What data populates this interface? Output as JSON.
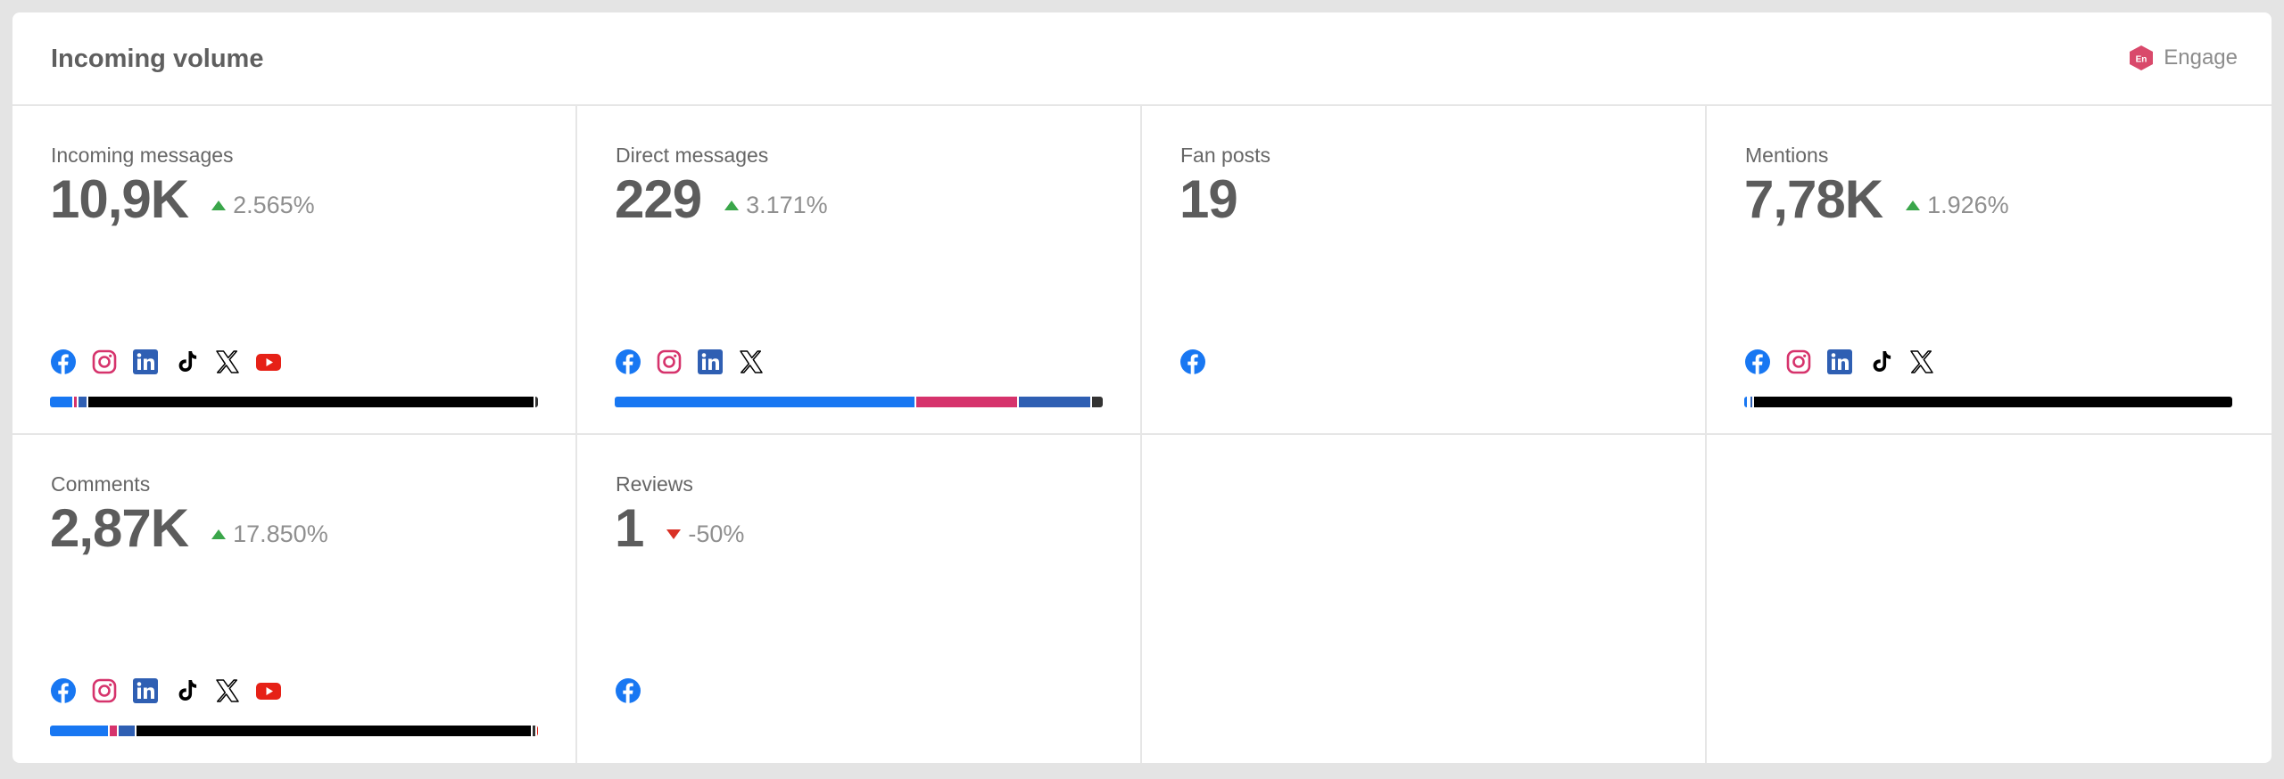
{
  "header": {
    "title": "Incoming volume",
    "engage_label": "Engage",
    "engage_logo_text": "En"
  },
  "colors": {
    "facebook": "#1877f2",
    "instagram": "#d6336c",
    "linkedin": "#2f5fb3",
    "tiktok": "#000000",
    "x": "#000000",
    "youtube": "#e62117",
    "trend_up": "#3aa64a",
    "trend_down": "#d93025"
  },
  "tiles": [
    {
      "label": "Incoming messages",
      "value": "10,9K",
      "trend": "2.565%",
      "trend_direction": "up",
      "channels": [
        "facebook",
        "instagram",
        "linkedin",
        "tiktok",
        "x",
        "youtube"
      ],
      "bar_fractions": [
        0.045,
        0.01,
        0.02,
        0.915,
        0.01
      ]
    },
    {
      "label": "Direct messages",
      "value": "229",
      "trend": "3.171%",
      "trend_direction": "up",
      "channels": [
        "facebook",
        "instagram",
        "linkedin",
        "x"
      ],
      "bar_fractions": [
        0.615,
        0.21,
        0.15,
        0.025
      ]
    },
    {
      "label": "Fan posts",
      "value": "19",
      "trend": "",
      "trend_direction": "",
      "channels": [
        "facebook"
      ],
      "bar_fractions": []
    },
    {
      "label": "Mentions",
      "value": "7,78K",
      "trend": "1.926%",
      "trend_direction": "up",
      "channels": [
        "facebook",
        "instagram",
        "linkedin",
        "tiktok",
        "x"
      ],
      "bar_fractions": [
        0.006,
        0.004,
        0.006,
        0.984
      ]
    },
    {
      "label": "Comments",
      "value": "2,87K",
      "trend": "17.850%",
      "trend_direction": "up",
      "channels": [
        "facebook",
        "instagram",
        "linkedin",
        "tiktok",
        "x",
        "youtube"
      ],
      "bar_fractions": [
        0.118,
        0.02,
        0.035,
        0.812,
        0.01,
        0.005
      ]
    },
    {
      "label": "Reviews",
      "value": "1",
      "trend": "-50%",
      "trend_direction": "down",
      "channels": [
        "facebook"
      ],
      "bar_fractions": []
    }
  ]
}
